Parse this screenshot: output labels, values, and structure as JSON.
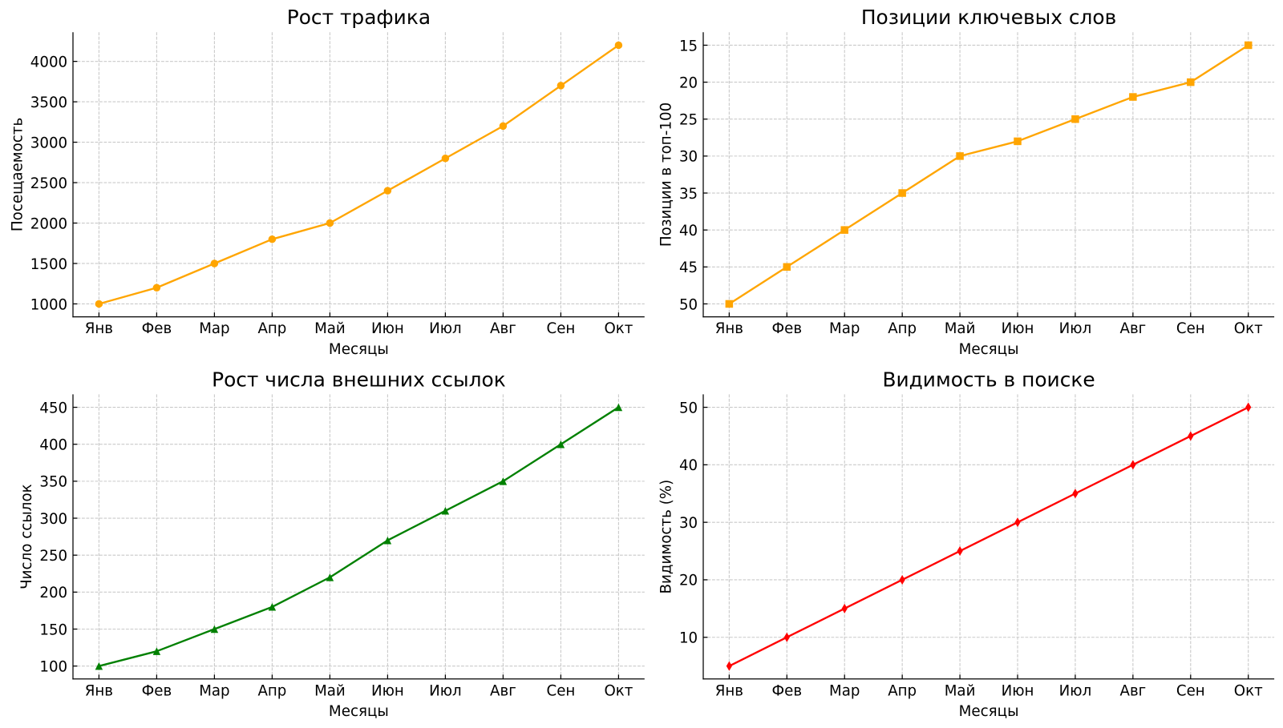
{
  "figure": {
    "background": "#ffffff",
    "grid_color": "#c9c9c9",
    "axis_color": "#000000",
    "text_color": "#000000"
  },
  "chart_data": [
    {
      "type": "line",
      "title": "Рост трафика",
      "xlabel": "Месяцы",
      "ylabel": "Посещаемость",
      "categories": [
        "Янв",
        "Фев",
        "Мар",
        "Апр",
        "Май",
        "Июн",
        "Июл",
        "Авг",
        "Сен",
        "Окт"
      ],
      "values": [
        1000,
        1200,
        1500,
        1800,
        2000,
        2400,
        2800,
        3200,
        3700,
        4200
      ],
      "ylim": [
        840,
        4360
      ],
      "yticks": [
        1000,
        1500,
        2000,
        2500,
        3000,
        3500,
        4000
      ],
      "y_inverted": false,
      "color": "#FFA500",
      "marker": "circle",
      "grid": true,
      "grid_style": "dashed",
      "legend": null
    },
    {
      "type": "line",
      "title": "Позиции ключевых слов",
      "xlabel": "Месяцы",
      "ylabel": "Позиции в топ-100",
      "categories": [
        "Янв",
        "Фев",
        "Мар",
        "Апр",
        "Май",
        "Июн",
        "Июл",
        "Авг",
        "Сен",
        "Окт"
      ],
      "values": [
        50,
        45,
        40,
        35,
        30,
        28,
        25,
        22,
        20,
        15
      ],
      "ylim": [
        51.75,
        13.25
      ],
      "yticks": [
        15,
        20,
        25,
        30,
        35,
        40,
        45,
        50
      ],
      "y_inverted": true,
      "color": "#FFA500",
      "marker": "square",
      "grid": true,
      "grid_style": "dashed",
      "legend": null
    },
    {
      "type": "line",
      "title": "Рост числа внешних ссылок",
      "xlabel": "Месяцы",
      "ylabel": "Число ссылок",
      "categories": [
        "Янв",
        "Фев",
        "Мар",
        "Апр",
        "Май",
        "Июн",
        "Июл",
        "Авг",
        "Сен",
        "Окт"
      ],
      "values": [
        100,
        120,
        150,
        180,
        220,
        270,
        310,
        350,
        400,
        450
      ],
      "ylim": [
        82.5,
        467.5
      ],
      "yticks": [
        100,
        150,
        200,
        250,
        300,
        350,
        400,
        450
      ],
      "y_inverted": false,
      "color": "#008000",
      "marker": "triangle-up",
      "grid": true,
      "grid_style": "dashed",
      "legend": null
    },
    {
      "type": "line",
      "title": "Видимость в поиске",
      "xlabel": "Месяцы",
      "ylabel": "Видимость (%)",
      "categories": [
        "Янв",
        "Фев",
        "Мар",
        "Апр",
        "Май",
        "Июн",
        "Июл",
        "Авг",
        "Сен",
        "Окт"
      ],
      "values": [
        5,
        10,
        15,
        20,
        25,
        30,
        35,
        40,
        45,
        50
      ],
      "ylim": [
        2.75,
        52.25
      ],
      "yticks": [
        10,
        20,
        30,
        40,
        50
      ],
      "y_inverted": false,
      "color": "#FF0000",
      "marker": "thin-diamond",
      "grid": true,
      "grid_style": "dashed",
      "legend": null
    }
  ]
}
